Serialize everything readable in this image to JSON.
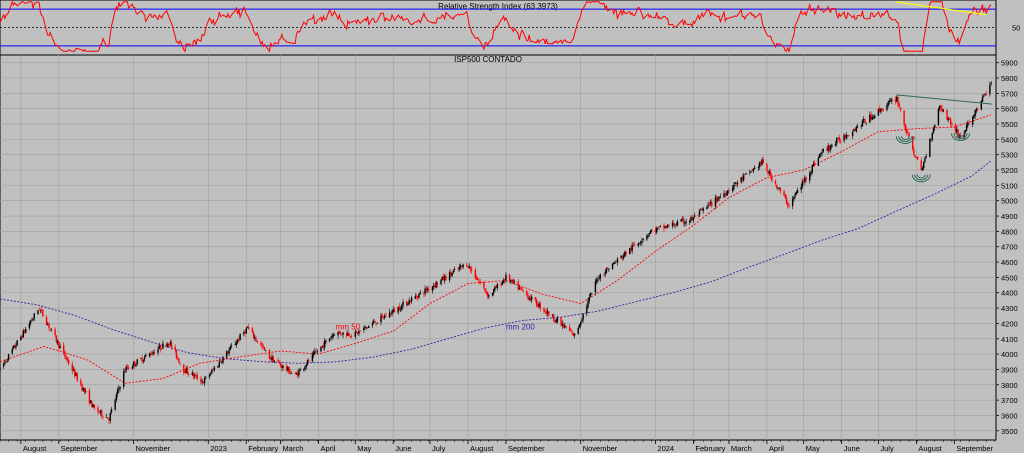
{
  "colors": {
    "background": "#c0c0c0",
    "grid": "#a0a0a0",
    "rsi_line": "#ff0000",
    "rsi_bands": "#0000ff",
    "up_candle": "#000000",
    "down_candle": "#ff0000",
    "mm50": "#ff0000",
    "mm200": "#3c1ea0",
    "neckline": "#2f6b5a",
    "rsi_trendline": "#ffff00",
    "pattern": "#2f6b5a"
  },
  "chart_data": [
    {
      "type": "line",
      "title": "Relative Strength Index (63.3973)",
      "ylim": [
        20,
        80
      ],
      "yticks": [
        50
      ],
      "bands": [
        30,
        70
      ],
      "grid": false,
      "trendline": {
        "x": [
          "2024-07-15",
          "2024-09-27"
        ],
        "y": [
          78,
          64
        ]
      }
    },
    {
      "type": "candlestick",
      "title": "ISP500 CONTADO",
      "ylim": [
        3440,
        5950
      ],
      "yticks": [
        3500,
        3600,
        3700,
        3800,
        3900,
        4000,
        4100,
        4200,
        4300,
        4400,
        4500,
        4600,
        4700,
        4800,
        4900,
        5000,
        5100,
        5200,
        5300,
        5400,
        5500,
        5600,
        5700,
        5800,
        5900
      ],
      "xlim": [
        "2022-07-15",
        "2024-10-05"
      ],
      "xticks": [
        {
          "label": "August",
          "date": "2022-08-01"
        },
        {
          "label": "September",
          "date": "2022-09-01"
        },
        {
          "label": "November",
          "date": "2022-11-01"
        },
        {
          "label": "2023",
          "date": "2023-01-01"
        },
        {
          "label": "February",
          "date": "2023-02-01"
        },
        {
          "label": "March",
          "date": "2023-03-01"
        },
        {
          "label": "April",
          "date": "2023-04-01"
        },
        {
          "label": "May",
          "date": "2023-05-01"
        },
        {
          "label": "June",
          "date": "2023-06-01"
        },
        {
          "label": "July",
          "date": "2023-07-01"
        },
        {
          "label": "August",
          "date": "2023-08-01"
        },
        {
          "label": "September",
          "date": "2023-09-01"
        },
        {
          "label": "November",
          "date": "2023-11-01"
        },
        {
          "label": "2024",
          "date": "2024-01-01"
        },
        {
          "label": "February",
          "date": "2024-02-01"
        },
        {
          "label": "March",
          "date": "2024-03-01"
        },
        {
          "label": "April",
          "date": "2024-04-01"
        },
        {
          "label": "May",
          "date": "2024-05-01"
        },
        {
          "label": "June",
          "date": "2024-06-01"
        },
        {
          "label": "July",
          "date": "2024-07-01"
        },
        {
          "label": "August",
          "date": "2024-08-01"
        },
        {
          "label": "September",
          "date": "2024-09-01"
        }
      ],
      "grid": true,
      "price_path": {
        "x": [
          "2022-07-15",
          "2022-08-16",
          "2022-09-05",
          "2022-09-30",
          "2022-10-12",
          "2022-10-25",
          "2022-11-30",
          "2022-12-12",
          "2022-12-28",
          "2023-02-02",
          "2023-02-20",
          "2023-03-13",
          "2023-04-14",
          "2023-05-01",
          "2023-06-01",
          "2023-07-31",
          "2023-08-18",
          "2023-09-01",
          "2023-10-27",
          "2023-11-15",
          "2023-12-28",
          "2024-01-31",
          "2024-03-28",
          "2024-04-19",
          "2024-05-15",
          "2024-07-16",
          "2024-07-25",
          "2024-08-05",
          "2024-08-20",
          "2024-09-06",
          "2024-10-01"
        ],
        "y": [
          3900,
          4300,
          4000,
          3640,
          3580,
          3900,
          4080,
          3900,
          3820,
          4170,
          3980,
          3860,
          4140,
          4130,
          4280,
          4590,
          4380,
          4500,
          4120,
          4500,
          4800,
          4880,
          5250,
          4970,
          5310,
          5670,
          5420,
          5190,
          5620,
          5410,
          5760
        ]
      },
      "series": [
        {
          "name": "mm 50",
          "x": [
            "2022-07-15",
            "2022-08-20",
            "2022-09-25",
            "2022-10-25",
            "2022-11-25",
            "2022-12-25",
            "2023-01-25",
            "2023-03-01",
            "2023-04-01",
            "2023-05-01",
            "2023-06-01",
            "2023-07-01",
            "2023-08-01",
            "2023-09-01",
            "2023-10-01",
            "2023-11-01",
            "2023-12-01",
            "2024-01-01",
            "2024-02-01",
            "2024-03-01",
            "2024-04-01",
            "2024-05-01",
            "2024-06-01",
            "2024-07-01",
            "2024-08-01",
            "2024-09-01",
            "2024-10-01"
          ],
          "y": [
            3950,
            4050,
            3960,
            3810,
            3840,
            3940,
            3980,
            4020,
            4000,
            4070,
            4150,
            4330,
            4460,
            4480,
            4390,
            4330,
            4480,
            4670,
            4840,
            5020,
            5150,
            5200,
            5320,
            5450,
            5470,
            5480,
            5560
          ]
        },
        {
          "name": "mm 200",
          "x": [
            "2022-07-15",
            "2022-08-15",
            "2022-09-15",
            "2022-10-15",
            "2022-11-15",
            "2022-12-15",
            "2023-01-15",
            "2023-02-15",
            "2023-03-15",
            "2023-04-15",
            "2023-05-15",
            "2023-06-15",
            "2023-07-15",
            "2023-08-15",
            "2023-09-15",
            "2023-10-15",
            "2023-11-15",
            "2023-12-15",
            "2024-01-15",
            "2024-02-15",
            "2024-03-15",
            "2024-04-15",
            "2024-05-15",
            "2024-06-15",
            "2024-07-15",
            "2024-08-15",
            "2024-09-15",
            "2024-10-01"
          ],
          "y": [
            4360,
            4320,
            4250,
            4160,
            4080,
            4010,
            3970,
            3950,
            3940,
            3950,
            3980,
            4030,
            4100,
            4170,
            4220,
            4240,
            4280,
            4340,
            4400,
            4470,
            4560,
            4650,
            4740,
            4820,
            4930,
            5040,
            5160,
            5260
          ]
        }
      ],
      "annotations": [
        {
          "text": "mm 50",
          "x": "2023-04-15",
          "y": 4180
        },
        {
          "text": "mm 200",
          "x": "2023-09-01",
          "y": 4180
        },
        {
          "kind": "neckline",
          "x": [
            "2024-07-16",
            "2024-10-02"
          ],
          "y": [
            5690,
            5630
          ]
        },
        {
          "kind": "arc",
          "x": "2024-07-23",
          "y": 5420
        },
        {
          "kind": "arc",
          "x": "2024-08-05",
          "y": 5170
        },
        {
          "kind": "arc",
          "x": "2024-09-06",
          "y": 5440
        }
      ]
    }
  ]
}
